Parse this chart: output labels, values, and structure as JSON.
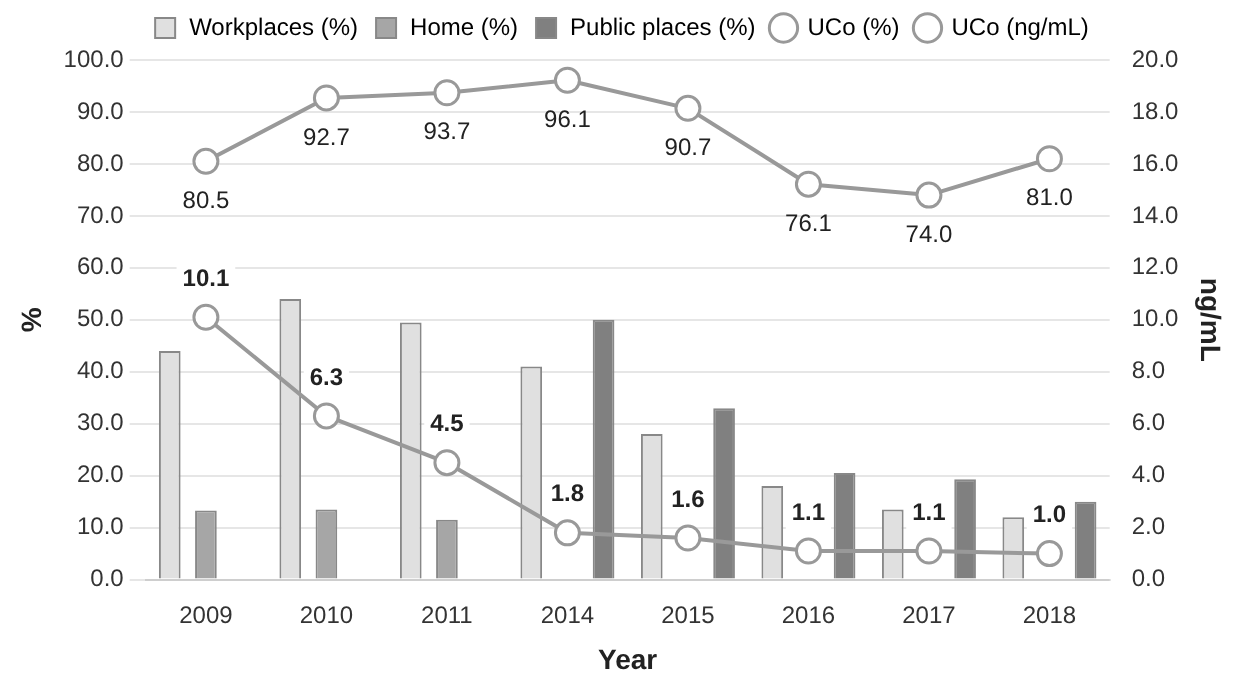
{
  "chart_data": {
    "type": "bar",
    "xlabel": "Year",
    "ylabel": "%",
    "y2label": "ng/mL",
    "categories": [
      "2009",
      "2010",
      "2011",
      "2014",
      "2015",
      "2016",
      "2017",
      "2018"
    ],
    "series": [
      {
        "name": "Workplaces (%)",
        "color": "#e0e0e0",
        "values": [
          44,
          54,
          49.5,
          41,
          28,
          18,
          13.5,
          12
        ]
      },
      {
        "name": "Home (%)",
        "color": "#a6a6a6",
        "values": [
          13.3,
          13.5,
          11.5,
          null,
          null,
          null,
          null,
          null
        ]
      },
      {
        "name": "Public places (%)",
        "color": "#808080",
        "values": [
          null,
          null,
          null,
          50,
          33,
          20.5,
          19.3,
          15
        ]
      },
      {
        "name": "UCo (%)",
        "type": "line",
        "color": "#999999",
        "values": [
          80.5,
          92.7,
          93.7,
          96.1,
          90.7,
          76.1,
          74.0,
          81.0
        ],
        "value_labels": [
          "80.5",
          "92.7",
          "93.7",
          "96.1",
          "90.7",
          "76.1",
          "74.0",
          "81.0"
        ]
      },
      {
        "name": "UCo (ng/mL)",
        "type": "line",
        "axis": "y2",
        "color": "#999999",
        "values": [
          10.1,
          6.3,
          4.5,
          1.8,
          1.6,
          1.1,
          1.1,
          1.0
        ],
        "value_labels": [
          "10.1",
          "6.3",
          "4.5",
          "1.8",
          "1.6",
          "1.1",
          "1.1",
          "1.0"
        ]
      }
    ],
    "ylim": [
      0,
      100
    ],
    "yticks": [
      {
        "value": 0,
        "label": "0.0"
      },
      {
        "value": 10,
        "label": "10.0"
      },
      {
        "value": 20,
        "label": "20.0"
      },
      {
        "value": 30,
        "label": "30.0"
      },
      {
        "value": 40,
        "label": "40.0"
      },
      {
        "value": 50,
        "label": "50.0"
      },
      {
        "value": 60,
        "label": "60.0"
      },
      {
        "value": 70,
        "label": "70.0"
      },
      {
        "value": 80,
        "label": "80.0"
      },
      {
        "value": 90,
        "label": "90.0"
      },
      {
        "value": 100,
        "label": "100.0"
      }
    ],
    "y2lim": [
      0,
      20
    ],
    "y2ticks": [
      {
        "value": 0,
        "label": "0.0"
      },
      {
        "value": 2,
        "label": "2.0"
      },
      {
        "value": 4,
        "label": "4.0"
      },
      {
        "value": 6,
        "label": "6.0"
      },
      {
        "value": 8,
        "label": "8.0"
      },
      {
        "value": 10,
        "label": "10.0"
      },
      {
        "value": 12,
        "label": "12.0"
      },
      {
        "value": 14,
        "label": "14.0"
      },
      {
        "value": 16,
        "label": "16.0"
      },
      {
        "value": 18,
        "label": "18.0"
      },
      {
        "value": 20,
        "label": "20.0"
      }
    ],
    "grid": "y",
    "legend": "top",
    "marker": "circle"
  }
}
